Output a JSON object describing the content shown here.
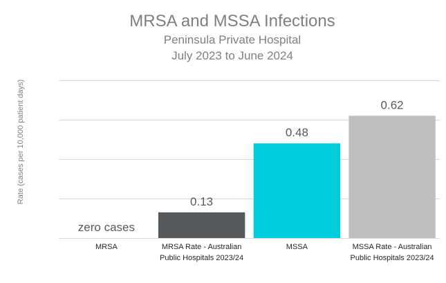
{
  "chart_data": {
    "type": "bar",
    "title": "MRSA and MSSA Infections",
    "subtitle_lines": [
      "Peninsula Private Hospital",
      "July 2023 to June 2024"
    ],
    "ylabel": "Rate (cases  per 10,000 patient days)",
    "xlabel": "",
    "ylim": [
      0,
      0.8
    ],
    "grid": true,
    "legend": "none",
    "categories": [
      [
        "MRSA"
      ],
      [
        "MRSA Rate - Australian",
        "Public Hospitals 2023/24"
      ],
      [
        "MSSA"
      ],
      [
        "MSSA Rate - Australian",
        "Public Hospitals 2023/24"
      ]
    ],
    "values": [
      0,
      0.13,
      0.48,
      0.62
    ],
    "data_labels": [
      "zero cases",
      "0.13",
      "0.48",
      "0.62"
    ],
    "colors": [
      "#ffffff",
      "#55585b",
      "#00cddc",
      "#bfbfbf"
    ]
  }
}
